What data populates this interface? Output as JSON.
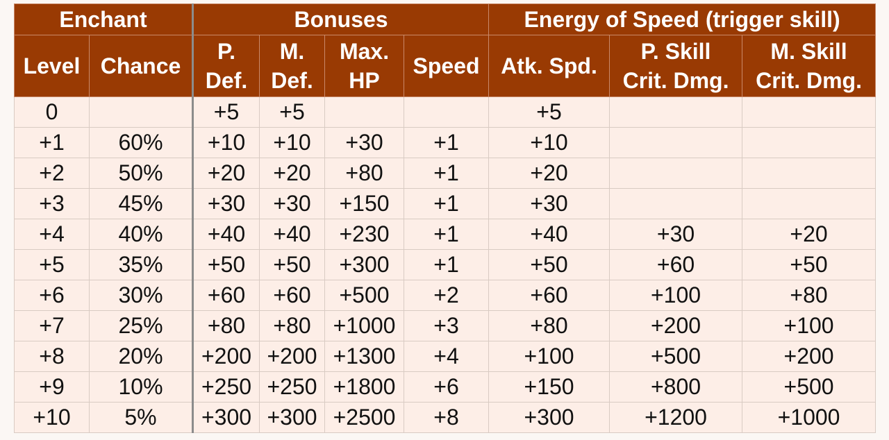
{
  "groups": {
    "enchant": "Enchant",
    "bonuses": "Bonuses",
    "energy": "Energy of Speed (trigger skill)"
  },
  "columns": [
    [
      "Level"
    ],
    [
      "Chance"
    ],
    [
      "P.",
      "Def."
    ],
    [
      "M.",
      "Def."
    ],
    [
      "Max.",
      "HP"
    ],
    [
      "Speed"
    ],
    [
      "Atk. Spd."
    ],
    [
      "P. Skill",
      "Crit. Dmg."
    ],
    [
      "M. Skill",
      "Crit. Dmg."
    ]
  ],
  "rows": [
    [
      "0",
      "",
      "+5",
      "+5",
      "",
      "",
      "+5",
      "",
      ""
    ],
    [
      "+1",
      "60%",
      "+10",
      "+10",
      "+30",
      "+1",
      "+10",
      "",
      ""
    ],
    [
      "+2",
      "50%",
      "+20",
      "+20",
      "+80",
      "+1",
      "+20",
      "",
      ""
    ],
    [
      "+3",
      "45%",
      "+30",
      "+30",
      "+150",
      "+1",
      "+30",
      "",
      ""
    ],
    [
      "+4",
      "40%",
      "+40",
      "+40",
      "+230",
      "+1",
      "+40",
      "+30",
      "+20"
    ],
    [
      "+5",
      "35%",
      "+50",
      "+50",
      "+300",
      "+1",
      "+50",
      "+60",
      "+50"
    ],
    [
      "+6",
      "30%",
      "+60",
      "+60",
      "+500",
      "+2",
      "+60",
      "+100",
      "+80"
    ],
    [
      "+7",
      "25%",
      "+80",
      "+80",
      "+1000",
      "+3",
      "+80",
      "+200",
      "+100"
    ],
    [
      "+8",
      "20%",
      "+200",
      "+200",
      "+1300",
      "+4",
      "+100",
      "+500",
      "+200"
    ],
    [
      "+9",
      "10%",
      "+250",
      "+250",
      "+1800",
      "+6",
      "+150",
      "+800",
      "+500"
    ],
    [
      "+10",
      "5%",
      "+300",
      "+300",
      "+2500",
      "+8",
      "+300",
      "+1200",
      "+1000"
    ]
  ],
  "colors": {
    "header_bg": "#993a03",
    "header_text": "#ffffff",
    "cell_bg": "#fdeee7",
    "cell_text": "#111111"
  }
}
